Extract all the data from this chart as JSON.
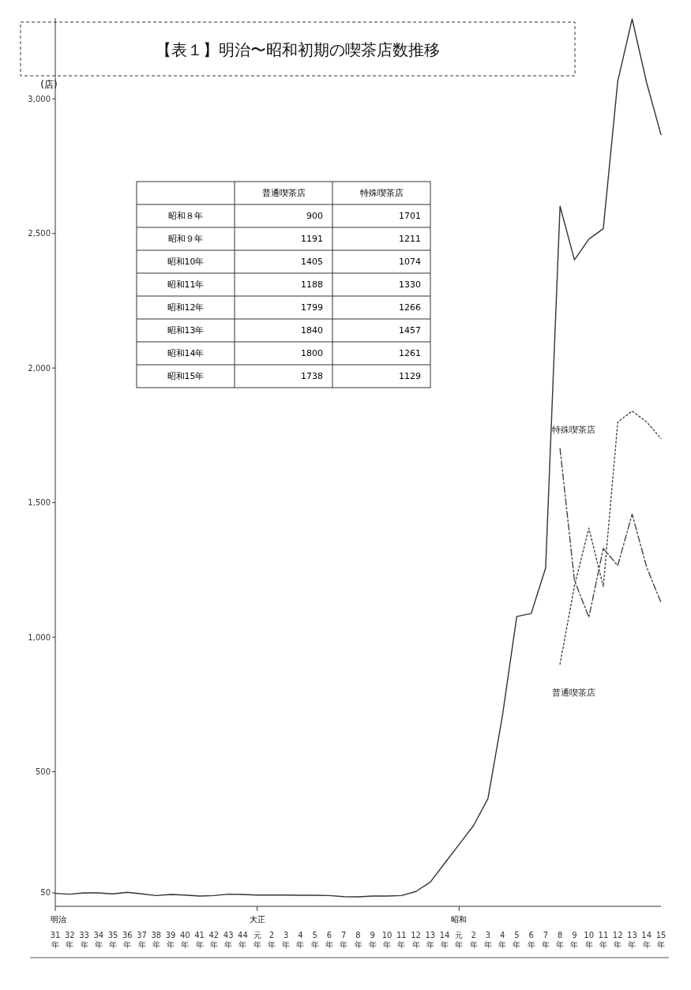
{
  "chart_data": [
    {
      "type": "line",
      "title": "【表１】明治〜昭和初期の喫茶店数推移",
      "ylabel": "(店)",
      "categories": [
        "31年",
        "32年",
        "33年",
        "34年",
        "35年",
        "36年",
        "37年",
        "38年",
        "39年",
        "40年",
        "41年",
        "42年",
        "43年",
        "44年",
        "元年",
        "2年",
        "3年",
        "4年",
        "5年",
        "6年",
        "7年",
        "8年",
        "9年",
        "10年",
        "11年",
        "12年",
        "13年",
        "14年",
        "元年",
        "2年",
        "3年",
        "4年",
        "5年",
        "6年",
        "7年",
        "8年",
        "9年",
        "10年",
        "11年",
        "12年",
        "13年",
        "14年",
        "15年"
      ],
      "series": [
        {
          "color": "#333333",
          "line_style": "solid",
          "values": [
            48,
            45,
            50,
            50,
            46,
            52,
            46,
            40,
            44,
            42,
            38,
            40,
            45,
            44,
            42,
            42,
            42,
            41,
            41,
            40,
            36,
            35,
            38,
            38,
            40,
            55,
            90,
            160,
            230,
            300,
            400,
            706,
            1077,
            1088,
            1257,
            2601,
            2402,
            2479,
            2518,
            3065,
            3297,
            3061,
            2867
          ]
        },
        {
          "name": "普通喫茶店",
          "color": "#444444",
          "line_style": "dotted",
          "values": [
            null,
            null,
            null,
            null,
            null,
            null,
            null,
            null,
            null,
            null,
            null,
            null,
            null,
            null,
            null,
            null,
            null,
            null,
            null,
            null,
            null,
            null,
            null,
            null,
            null,
            null,
            null,
            null,
            null,
            null,
            null,
            null,
            null,
            null,
            null,
            900,
            1191,
            1405,
            1188,
            1799,
            1840,
            1800,
            1738
          ]
        },
        {
          "name": "特殊喫茶店",
          "color": "#444444",
          "line_style": "dashed",
          "values": [
            null,
            null,
            null,
            null,
            null,
            null,
            null,
            null,
            null,
            null,
            null,
            null,
            null,
            null,
            null,
            null,
            null,
            null,
            null,
            null,
            null,
            null,
            null,
            null,
            null,
            null,
            null,
            null,
            null,
            null,
            null,
            null,
            null,
            null,
            null,
            1701,
            1211,
            1074,
            1330,
            1266,
            1457,
            1261,
            1129
          ]
        }
      ],
      "annotations": [
        "明治",
        "大正",
        "昭和"
      ],
      "ylim": [
        0,
        3300
      ],
      "yticks": [
        50,
        500,
        {
          "value": 1000,
          "label": "1,000"
        },
        {
          "value": 1500,
          "label": "1,500"
        },
        {
          "value": 2000,
          "label": "2,000"
        },
        {
          "value": 2500,
          "label": "2,500"
        },
        {
          "value": 3000,
          "label": "3,000"
        }
      ],
      "grid": false,
      "legend": false,
      "marker": "none"
    },
    {
      "type": "other",
      "data_labels": true,
      "categories": [
        "昭和８年",
        "昭和９年",
        "昭和10年",
        "昭和11年",
        "昭和12年",
        "昭和13年",
        "昭和14年",
        "昭和15年"
      ],
      "series": [
        {
          "name": "普通喫茶店",
          "values": [
            900,
            1191,
            1405,
            1188,
            1799,
            1840,
            1800,
            1738
          ]
        },
        {
          "name": "特殊喫茶店",
          "values": [
            1701,
            1211,
            1074,
            1330,
            1266,
            1457,
            1261,
            1129
          ]
        }
      ]
    }
  ]
}
